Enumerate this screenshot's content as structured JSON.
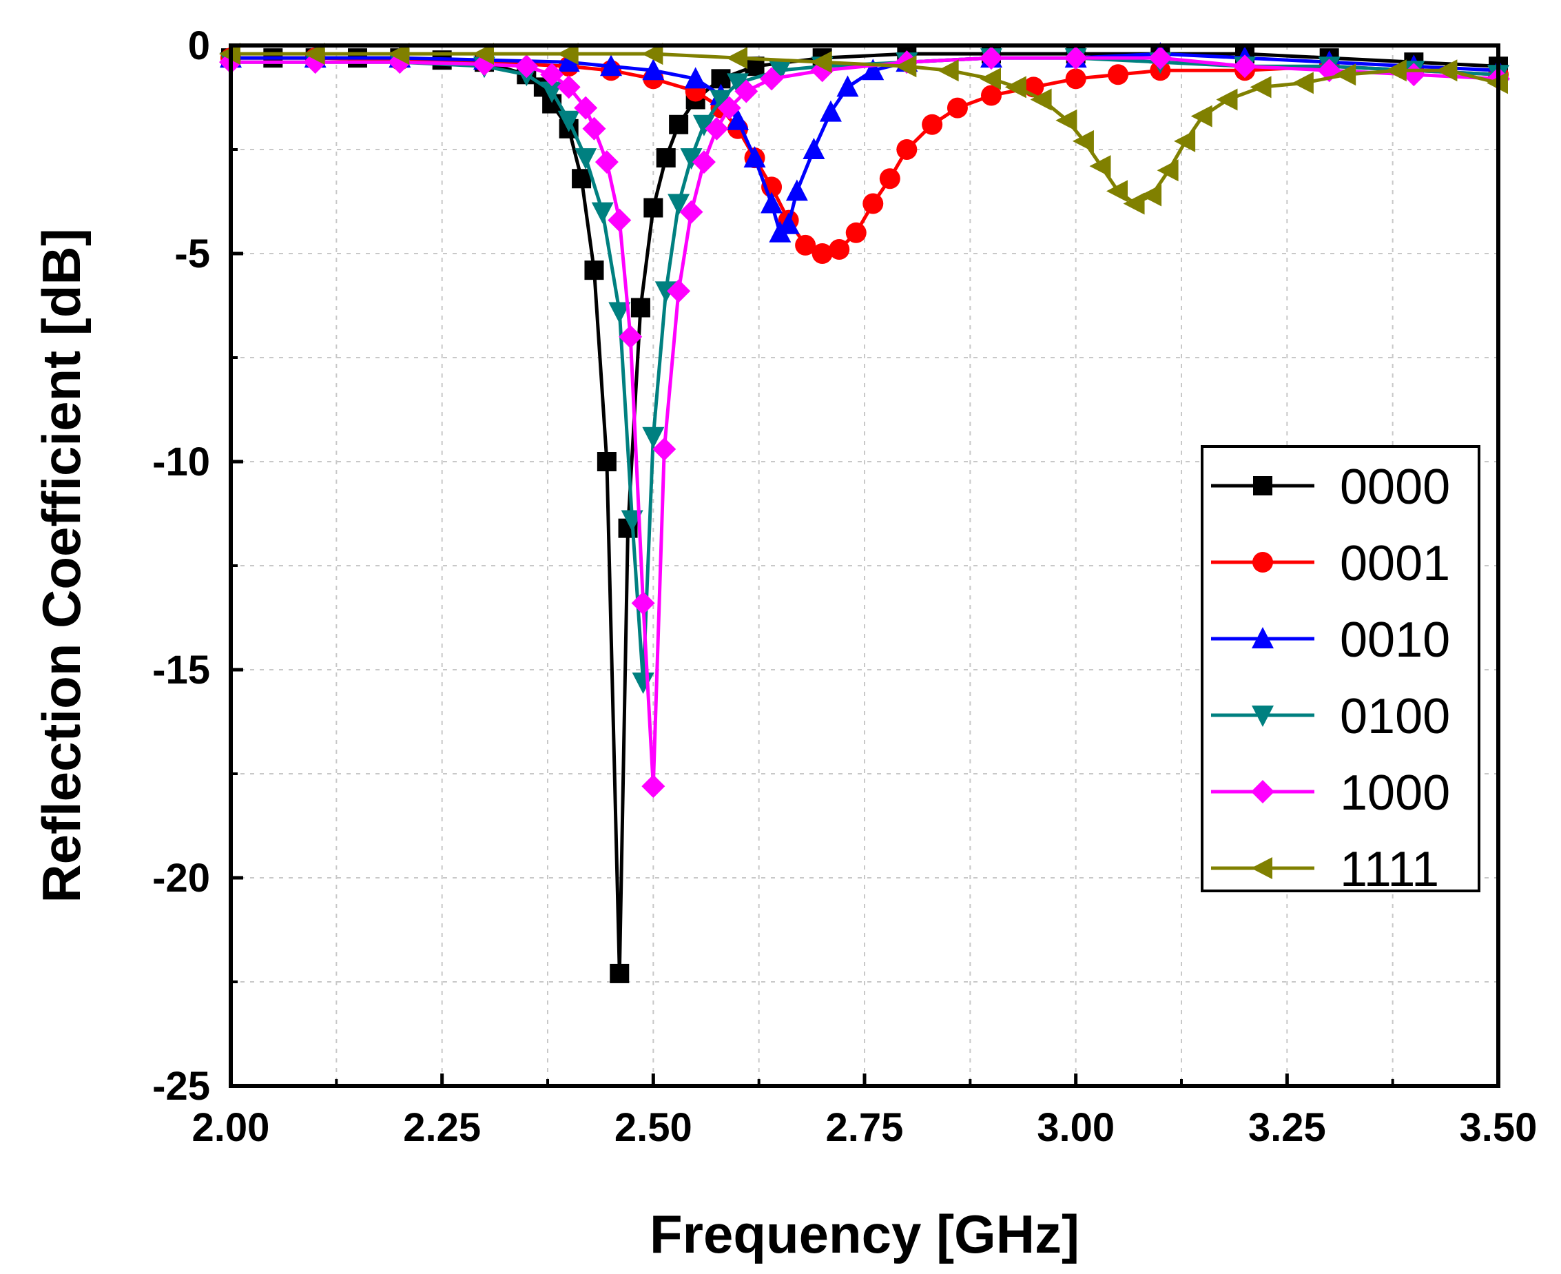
{
  "chart_data": {
    "type": "line",
    "title": "",
    "xlabel": "Frequency [GHz]",
    "ylabel": "Reflection Coefficient [dB]",
    "xlim": [
      2.0,
      3.5
    ],
    "ylim": [
      -25,
      0
    ],
    "xticks": [
      2.0,
      2.25,
      2.5,
      2.75,
      3.0,
      3.25,
      3.5
    ],
    "xtick_labels": [
      "2.00",
      "2.25",
      "2.50",
      "2.75",
      "3.00",
      "3.25",
      "3.50"
    ],
    "yticks": [
      0,
      -5,
      -10,
      -15,
      -20,
      -25
    ],
    "ytick_labels": [
      "0",
      "-5",
      "-10",
      "-15",
      "-20",
      "-25"
    ],
    "grid": true,
    "legend_position": "right",
    "series": [
      {
        "name": "0000",
        "color": "#000000",
        "marker": "square",
        "points": [
          [
            2.0,
            -0.3
          ],
          [
            2.05,
            -0.3
          ],
          [
            2.1,
            -0.3
          ],
          [
            2.15,
            -0.3
          ],
          [
            2.2,
            -0.3
          ],
          [
            2.25,
            -0.35
          ],
          [
            2.3,
            -0.4
          ],
          [
            2.35,
            -0.7
          ],
          [
            2.37,
            -1.0
          ],
          [
            2.38,
            -1.4
          ],
          [
            2.4,
            -2.0
          ],
          [
            2.415,
            -3.2
          ],
          [
            2.43,
            -5.4
          ],
          [
            2.445,
            -10.0
          ],
          [
            2.46,
            -22.3
          ],
          [
            2.47,
            -11.6
          ],
          [
            2.485,
            -6.3
          ],
          [
            2.5,
            -3.9
          ],
          [
            2.515,
            -2.7
          ],
          [
            2.53,
            -1.9
          ],
          [
            2.55,
            -1.3
          ],
          [
            2.58,
            -0.8
          ],
          [
            2.62,
            -0.5
          ],
          [
            2.7,
            -0.3
          ],
          [
            2.8,
            -0.2
          ],
          [
            2.9,
            -0.2
          ],
          [
            3.0,
            -0.2
          ],
          [
            3.1,
            -0.2
          ],
          [
            3.2,
            -0.2
          ],
          [
            3.3,
            -0.3
          ],
          [
            3.4,
            -0.4
          ],
          [
            3.5,
            -0.5
          ]
        ]
      },
      {
        "name": "0001",
        "color": "#ff0000",
        "marker": "circle",
        "points": [
          [
            2.0,
            -0.3
          ],
          [
            2.1,
            -0.3
          ],
          [
            2.2,
            -0.35
          ],
          [
            2.3,
            -0.4
          ],
          [
            2.4,
            -0.5
          ],
          [
            2.45,
            -0.6
          ],
          [
            2.5,
            -0.8
          ],
          [
            2.55,
            -1.1
          ],
          [
            2.58,
            -1.5
          ],
          [
            2.6,
            -2.0
          ],
          [
            2.62,
            -2.7
          ],
          [
            2.64,
            -3.4
          ],
          [
            2.66,
            -4.2
          ],
          [
            2.68,
            -4.8
          ],
          [
            2.7,
            -5.0
          ],
          [
            2.72,
            -4.9
          ],
          [
            2.74,
            -4.5
          ],
          [
            2.76,
            -3.8
          ],
          [
            2.78,
            -3.2
          ],
          [
            2.8,
            -2.5
          ],
          [
            2.83,
            -1.9
          ],
          [
            2.86,
            -1.5
          ],
          [
            2.9,
            -1.2
          ],
          [
            2.95,
            -1.0
          ],
          [
            3.0,
            -0.8
          ],
          [
            3.05,
            -0.7
          ],
          [
            3.1,
            -0.6
          ],
          [
            3.2,
            -0.6
          ],
          [
            3.3,
            -0.5
          ],
          [
            3.4,
            -0.6
          ],
          [
            3.5,
            -0.7
          ]
        ]
      },
      {
        "name": "0010",
        "color": "#0000ff",
        "marker": "triangle-up",
        "points": [
          [
            2.0,
            -0.3
          ],
          [
            2.1,
            -0.3
          ],
          [
            2.2,
            -0.3
          ],
          [
            2.3,
            -0.35
          ],
          [
            2.4,
            -0.4
          ],
          [
            2.45,
            -0.5
          ],
          [
            2.5,
            -0.6
          ],
          [
            2.55,
            -0.8
          ],
          [
            2.58,
            -1.2
          ],
          [
            2.6,
            -1.8
          ],
          [
            2.62,
            -2.7
          ],
          [
            2.64,
            -3.8
          ],
          [
            2.65,
            -4.5
          ],
          [
            2.66,
            -4.3
          ],
          [
            2.67,
            -3.5
          ],
          [
            2.69,
            -2.5
          ],
          [
            2.71,
            -1.6
          ],
          [
            2.73,
            -1.0
          ],
          [
            2.76,
            -0.6
          ],
          [
            2.8,
            -0.4
          ],
          [
            2.9,
            -0.3
          ],
          [
            3.0,
            -0.3
          ],
          [
            3.1,
            -0.2
          ],
          [
            3.2,
            -0.3
          ],
          [
            3.3,
            -0.4
          ],
          [
            3.4,
            -0.5
          ],
          [
            3.5,
            -0.6
          ]
        ]
      },
      {
        "name": "0100",
        "color": "#008080",
        "marker": "triangle-down",
        "points": [
          [
            2.0,
            -0.4
          ],
          [
            2.1,
            -0.4
          ],
          [
            2.2,
            -0.4
          ],
          [
            2.3,
            -0.5
          ],
          [
            2.35,
            -0.7
          ],
          [
            2.38,
            -1.1
          ],
          [
            2.4,
            -1.8
          ],
          [
            2.42,
            -2.7
          ],
          [
            2.44,
            -4.0
          ],
          [
            2.46,
            -6.4
          ],
          [
            2.475,
            -11.4
          ],
          [
            2.488,
            -15.3
          ],
          [
            2.5,
            -9.4
          ],
          [
            2.515,
            -5.9
          ],
          [
            2.53,
            -3.8
          ],
          [
            2.545,
            -2.7
          ],
          [
            2.56,
            -1.9
          ],
          [
            2.58,
            -1.3
          ],
          [
            2.6,
            -0.9
          ],
          [
            2.65,
            -0.6
          ],
          [
            2.7,
            -0.5
          ],
          [
            2.8,
            -0.4
          ],
          [
            2.9,
            -0.3
          ],
          [
            3.0,
            -0.3
          ],
          [
            3.1,
            -0.4
          ],
          [
            3.2,
            -0.5
          ],
          [
            3.3,
            -0.5
          ],
          [
            3.4,
            -0.6
          ],
          [
            3.5,
            -0.7
          ]
        ]
      },
      {
        "name": "1000",
        "color": "#ff00ff",
        "marker": "diamond",
        "points": [
          [
            2.0,
            -0.4
          ],
          [
            2.1,
            -0.4
          ],
          [
            2.2,
            -0.4
          ],
          [
            2.3,
            -0.45
          ],
          [
            2.35,
            -0.5
          ],
          [
            2.38,
            -0.7
          ],
          [
            2.4,
            -1.0
          ],
          [
            2.42,
            -1.5
          ],
          [
            2.43,
            -2.0
          ],
          [
            2.445,
            -2.8
          ],
          [
            2.46,
            -4.2
          ],
          [
            2.473,
            -7.0
          ],
          [
            2.488,
            -13.4
          ],
          [
            2.5,
            -17.8
          ],
          [
            2.513,
            -9.7
          ],
          [
            2.53,
            -5.9
          ],
          [
            2.545,
            -4.0
          ],
          [
            2.56,
            -2.8
          ],
          [
            2.575,
            -2.0
          ],
          [
            2.59,
            -1.5
          ],
          [
            2.61,
            -1.1
          ],
          [
            2.64,
            -0.8
          ],
          [
            2.7,
            -0.6
          ],
          [
            2.8,
            -0.4
          ],
          [
            2.9,
            -0.3
          ],
          [
            3.0,
            -0.3
          ],
          [
            3.1,
            -0.3
          ],
          [
            3.2,
            -0.5
          ],
          [
            3.3,
            -0.6
          ],
          [
            3.4,
            -0.7
          ],
          [
            3.5,
            -0.8
          ]
        ]
      },
      {
        "name": "1111",
        "color": "#808000",
        "marker": "triangle-left",
        "points": [
          [
            2.0,
            -0.2
          ],
          [
            2.1,
            -0.2
          ],
          [
            2.2,
            -0.2
          ],
          [
            2.3,
            -0.2
          ],
          [
            2.4,
            -0.2
          ],
          [
            2.5,
            -0.2
          ],
          [
            2.6,
            -0.3
          ],
          [
            2.7,
            -0.4
          ],
          [
            2.8,
            -0.5
          ],
          [
            2.85,
            -0.6
          ],
          [
            2.9,
            -0.8
          ],
          [
            2.93,
            -1.0
          ],
          [
            2.96,
            -1.3
          ],
          [
            2.99,
            -1.8
          ],
          [
            3.01,
            -2.3
          ],
          [
            3.03,
            -2.9
          ],
          [
            3.05,
            -3.5
          ],
          [
            3.07,
            -3.8
          ],
          [
            3.09,
            -3.6
          ],
          [
            3.11,
            -3.0
          ],
          [
            3.13,
            -2.3
          ],
          [
            3.15,
            -1.7
          ],
          [
            3.18,
            -1.3
          ],
          [
            3.22,
            -1.0
          ],
          [
            3.27,
            -0.9
          ],
          [
            3.32,
            -0.7
          ],
          [
            3.38,
            -0.6
          ],
          [
            3.44,
            -0.6
          ],
          [
            3.5,
            -0.9
          ]
        ]
      }
    ]
  }
}
